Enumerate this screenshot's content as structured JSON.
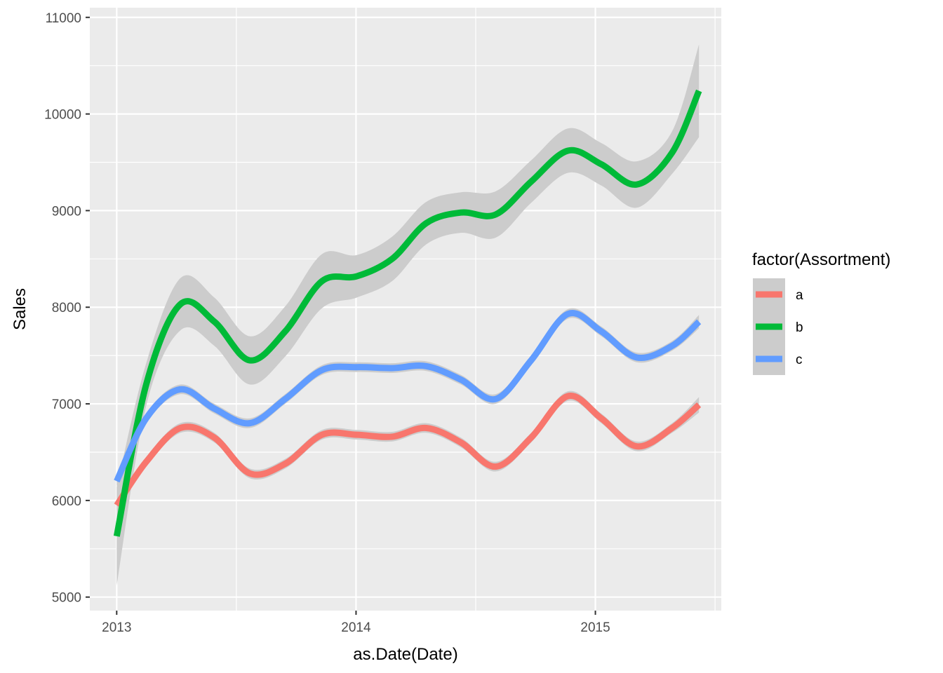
{
  "chart_data": {
    "type": "line",
    "title": "",
    "xlabel": "as.Date(Date)",
    "ylabel": "Sales",
    "x_axis_type": "date",
    "x_ticks": [
      "2013",
      "2014",
      "2015"
    ],
    "x_tick_values": [
      "2013-01-01",
      "2014-01-01",
      "2015-01-01"
    ],
    "xlim": [
      "2012-11-21",
      "2015-07-12"
    ],
    "y_ticks": [
      5000,
      6000,
      7000,
      8000,
      9000,
      10000,
      11000
    ],
    "ylim": [
      4860,
      11100
    ],
    "grid": true,
    "legend_title": "factor(Assortment)",
    "legend_position": "right",
    "confidence_band_color": "#cccccc",
    "panel_background": "#ebebeb",
    "series": [
      {
        "name": "a",
        "color": "#f8766d",
        "x": [
          "2013-01-01",
          "2013-02-15",
          "2013-04-08",
          "2013-05-30",
          "2013-07-23",
          "2013-09-15",
          "2013-11-10",
          "2014-01-02",
          "2014-02-25",
          "2014-04-18",
          "2014-06-10",
          "2014-08-02",
          "2014-09-25",
          "2014-11-20",
          "2015-01-10",
          "2015-03-05",
          "2015-04-28",
          "2015-06-08"
        ],
        "y": [
          5950,
          6400,
          6750,
          6650,
          6280,
          6380,
          6680,
          6680,
          6660,
          6750,
          6600,
          6350,
          6650,
          7080,
          6850,
          6560,
          6750,
          6990
        ],
        "lower": [
          5900,
          6350,
          6700,
          6600,
          6230,
          6330,
          6630,
          6630,
          6610,
          6700,
          6550,
          6300,
          6600,
          7030,
          6800,
          6510,
          6700,
          6910
        ],
        "upper": [
          6000,
          6450,
          6800,
          6700,
          6330,
          6430,
          6730,
          6730,
          6710,
          6800,
          6650,
          6400,
          6700,
          7130,
          6900,
          6610,
          6800,
          7070
        ]
      },
      {
        "name": "b",
        "color": "#00ba38",
        "x": [
          "2013-01-01",
          "2013-02-15",
          "2013-04-08",
          "2013-05-30",
          "2013-07-23",
          "2013-09-15",
          "2013-11-10",
          "2014-01-02",
          "2014-02-25",
          "2014-04-18",
          "2014-06-10",
          "2014-08-02",
          "2014-09-25",
          "2014-11-20",
          "2015-01-10",
          "2015-03-05",
          "2015-04-28",
          "2015-06-08"
        ],
        "y": [
          5630,
          7200,
          8030,
          7850,
          7450,
          7750,
          8270,
          8320,
          8500,
          8870,
          8980,
          8960,
          9300,
          9620,
          9480,
          9270,
          9600,
          10240
        ],
        "lower": [
          5120,
          6980,
          7760,
          7600,
          7200,
          7490,
          7990,
          8100,
          8270,
          8650,
          8770,
          8720,
          9080,
          9390,
          9260,
          9030,
          9380,
          9760
        ],
        "upper": [
          6140,
          7420,
          8300,
          8100,
          7700,
          8010,
          8550,
          8540,
          8730,
          9090,
          9190,
          9200,
          9520,
          9850,
          9700,
          9510,
          9820,
          10720
        ]
      },
      {
        "name": "c",
        "color": "#619cff",
        "x": [
          "2013-01-01",
          "2013-02-15",
          "2013-04-08",
          "2013-05-30",
          "2013-07-23",
          "2013-09-15",
          "2013-11-10",
          "2014-01-02",
          "2014-02-25",
          "2014-04-18",
          "2014-06-10",
          "2014-08-02",
          "2014-09-25",
          "2014-11-20",
          "2015-01-10",
          "2015-03-05",
          "2015-04-28",
          "2015-06-08"
        ],
        "y": [
          6200,
          6850,
          7150,
          6950,
          6800,
          7050,
          7350,
          7380,
          7370,
          7390,
          7250,
          7050,
          7450,
          7930,
          7750,
          7480,
          7600,
          7850
        ],
        "lower": [
          6150,
          6800,
          7100,
          6900,
          6750,
          7000,
          7300,
          7330,
          7320,
          7340,
          7200,
          7000,
          7400,
          7880,
          7700,
          7430,
          7550,
          7780
        ],
        "upper": [
          6250,
          6900,
          7200,
          7000,
          6850,
          7100,
          7400,
          7430,
          7420,
          7440,
          7300,
          7100,
          7500,
          7980,
          7800,
          7530,
          7650,
          7920
        ]
      }
    ]
  }
}
